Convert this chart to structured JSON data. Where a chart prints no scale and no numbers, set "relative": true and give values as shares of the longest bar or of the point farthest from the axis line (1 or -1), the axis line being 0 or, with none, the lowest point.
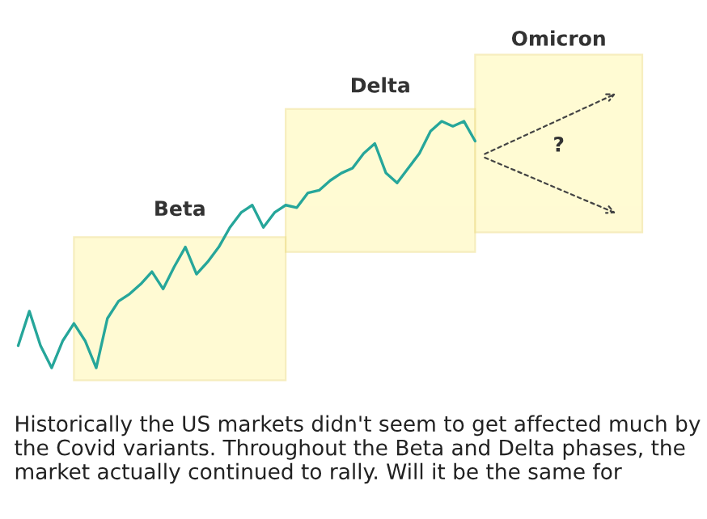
{
  "chart_data": {
    "type": "line",
    "relative": true,
    "color": "#26a69a",
    "categories": [
      null,
      null,
      null,
      null,
      null,
      null,
      null,
      null,
      null,
      null,
      null,
      null,
      null,
      null,
      null,
      null,
      null,
      null,
      null,
      null,
      null,
      null,
      null,
      null,
      null,
      null,
      null,
      null,
      null,
      null,
      null,
      null,
      null,
      null,
      null,
      null,
      null,
      null,
      null,
      null,
      null,
      null
    ],
    "values": [
      0.09,
      0.23,
      0.09,
      0,
      0.11,
      0.18,
      0.11,
      0,
      0.2,
      0.27,
      0.3,
      0.34,
      0.39,
      0.32,
      0.41,
      0.49,
      0.38,
      0.43,
      0.49,
      0.57,
      0.63,
      0.66,
      0.57,
      0.63,
      0.66,
      0.65,
      0.71,
      0.72,
      0.76,
      0.79,
      0.81,
      0.87,
      0.91,
      0.79,
      0.75,
      0.81,
      0.87,
      0.96,
      1,
      0.98,
      1,
      0.92
    ],
    "annotations": [
      "Beta",
      "Delta",
      "Omicron",
      "?",
      "Historically the US markets didn't seem to get affected much by the Covid variants. Throughout the Beta and Delta phases, the market actually continued to rally. Will it be the same for"
    ],
    "grid": false,
    "legend": false
  }
}
